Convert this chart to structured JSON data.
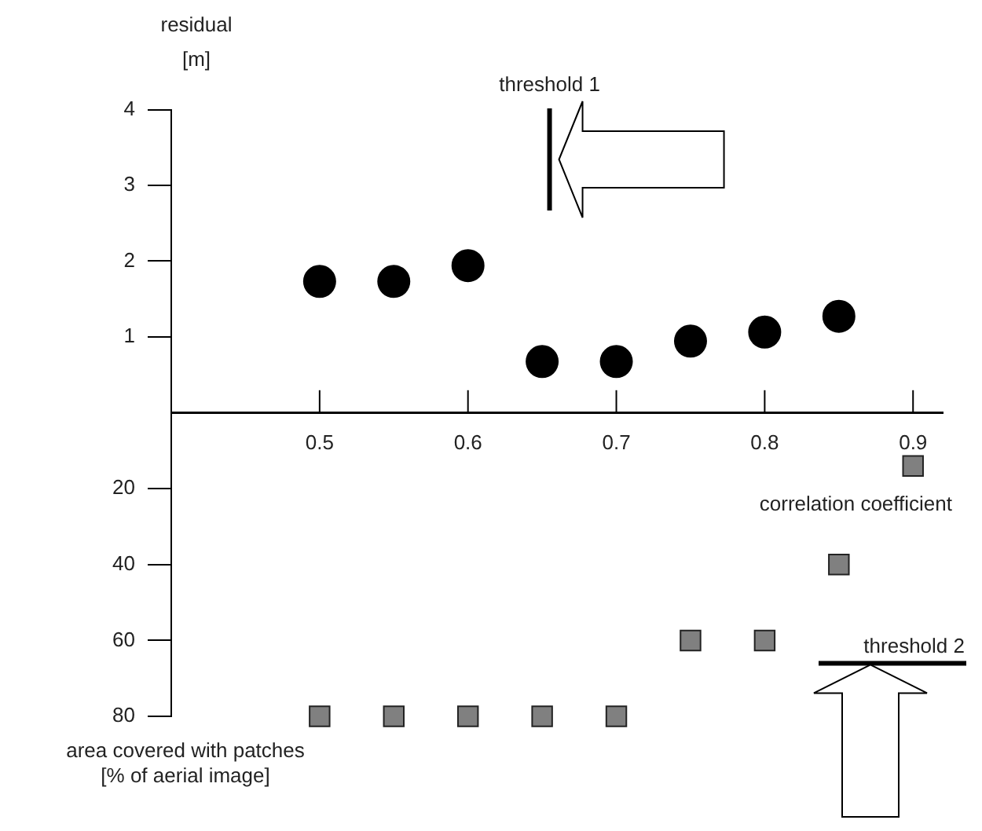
{
  "chart_data": [
    {
      "type": "scatter",
      "ylabel": "residual\n[m]",
      "x": [
        0.5,
        0.55,
        0.6,
        0.65,
        0.7,
        0.75,
        0.8,
        0.85
      ],
      "series": [
        {
          "color": "#000000",
          "marker": "circle",
          "values": [
            1.73,
            1.73,
            1.94,
            0.67,
            0.67,
            0.94,
            1.06,
            1.27
          ]
        }
      ],
      "xlim": [
        0.4,
        0.92
      ],
      "xticks": [
        0.5,
        0.6,
        0.7,
        0.8,
        0.9
      ],
      "ylim": [
        0,
        4
      ],
      "yticks": [
        1,
        2,
        3,
        4
      ],
      "ref_lines": [
        {
          "axis": "x",
          "value": 0.655,
          "label": "threshold 1",
          "color": "#000000"
        }
      ],
      "grid": false,
      "legend": false
    },
    {
      "type": "scatter",
      "xlabel": "correlation coefficient",
      "ylabel": "area covered with patches\n[% of aerial image]",
      "x": [
        0.5,
        0.55,
        0.6,
        0.65,
        0.7,
        0.75,
        0.8,
        0.85,
        0.9
      ],
      "xlim": [
        0.4,
        0.92
      ],
      "xticks": [
        0.5,
        0.6,
        0.7,
        0.8,
        0.9
      ],
      "series": [
        {
          "color": "#808080",
          "marker": "square",
          "values": [
            80,
            80,
            80,
            80,
            80,
            60,
            60,
            40,
            14
          ]
        }
      ],
      "ylim": [
        80,
        0
      ],
      "yticks": [
        20,
        40,
        60,
        80
      ],
      "tick_labels": "y",
      "ref_lines": [
        {
          "axis": "y",
          "value": 66,
          "label": "threshold 2",
          "color": "#000000"
        }
      ],
      "grid": false,
      "legend": false
    }
  ]
}
